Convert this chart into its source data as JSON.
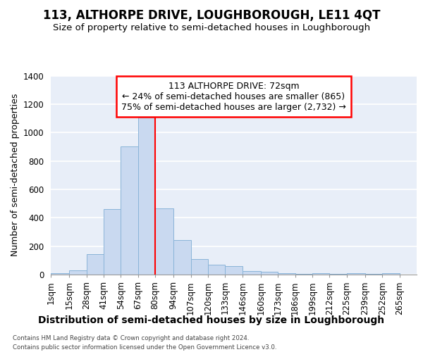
{
  "title": "113, ALTHORPE DRIVE, LOUGHBOROUGH, LE11 4QT",
  "subtitle": "Size of property relative to semi-detached houses in Loughborough",
  "xlabel": "Distribution of semi-detached houses by size in Loughborough",
  "ylabel": "Number of semi-detached properties",
  "bin_edges": [
    1,
    15,
    28,
    41,
    54,
    67,
    80,
    94,
    107,
    120,
    133,
    146,
    160,
    173,
    186,
    199,
    212,
    225,
    239,
    252,
    265
  ],
  "bin_labels": [
    "1sqm",
    "15sqm",
    "28sqm",
    "41sqm",
    "54sqm",
    "67sqm",
    "80sqm",
    "94sqm",
    "107sqm",
    "120sqm",
    "133sqm",
    "146sqm",
    "160sqm",
    "173sqm",
    "186sqm",
    "199sqm",
    "212sqm",
    "225sqm",
    "239sqm",
    "252sqm",
    "265sqm"
  ],
  "values": [
    10,
    30,
    145,
    460,
    900,
    1105,
    465,
    245,
    108,
    68,
    58,
    27,
    20,
    12,
    5,
    12,
    5,
    8,
    5,
    8
  ],
  "bar_color": "#c9d9f0",
  "bar_edge_color": "#8ab4d8",
  "background_color": "#e8eef8",
  "grid_color": "#ffffff",
  "red_line_x": 80,
  "annotation_text": "113 ALTHORPE DRIVE: 72sqm\n← 24% of semi-detached houses are smaller (865)\n75% of semi-detached houses are larger (2,732) →",
  "footnote_line1": "Contains HM Land Registry data © Crown copyright and database right 2024.",
  "footnote_line2": "Contains public sector information licensed under the Open Government Licence v3.0.",
  "ylim": [
    0,
    1400
  ],
  "yticks": [
    0,
    200,
    400,
    600,
    800,
    1000,
    1200,
    1400
  ],
  "title_fontsize": 12,
  "subtitle_fontsize": 9.5,
  "xlabel_fontsize": 10,
  "ylabel_fontsize": 9,
  "tick_fontsize": 8.5,
  "annotation_fontsize": 9
}
